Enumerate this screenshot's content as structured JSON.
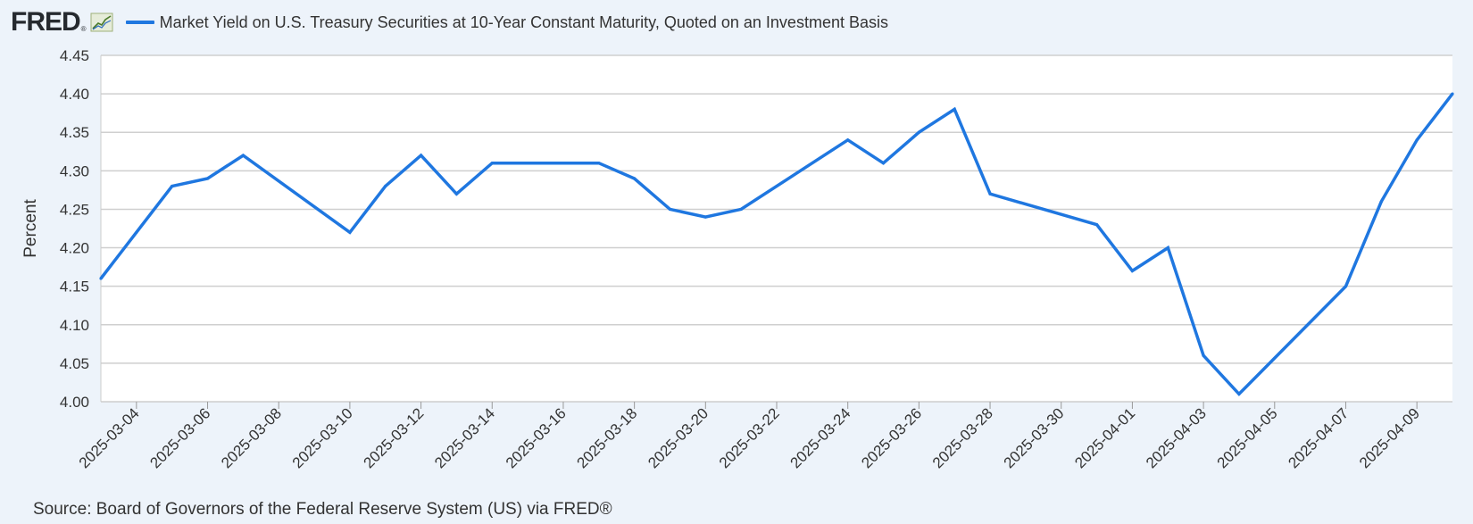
{
  "brand": {
    "logo_text": "FRED",
    "logo_mark": "®",
    "chart_icon": "line-chart-icon"
  },
  "source": "Source: Board of Governors of the Federal Reserve System (US) via FRED®",
  "colors": {
    "series": "#1f77e0",
    "background": "#edf3fa",
    "plot_bg": "#ffffff",
    "grid": "#cfcfcf"
  },
  "chart_data": {
    "type": "line",
    "title": "",
    "xlabel": "",
    "ylabel": "Percent",
    "ylim": [
      4.0,
      4.45
    ],
    "yticks": [
      "4.00",
      "4.05",
      "4.10",
      "4.15",
      "4.20",
      "4.25",
      "4.30",
      "4.35",
      "4.40",
      "4.45"
    ],
    "xlim": [
      "2025-03-03",
      "2025-04-10"
    ],
    "xticks": [
      "2025-03-04",
      "2025-03-06",
      "2025-03-08",
      "2025-03-10",
      "2025-03-12",
      "2025-03-14",
      "2025-03-16",
      "2025-03-18",
      "2025-03-20",
      "2025-03-22",
      "2025-03-24",
      "2025-03-26",
      "2025-03-28",
      "2025-03-30",
      "2025-04-01",
      "2025-04-03",
      "2025-04-05",
      "2025-04-07",
      "2025-04-09"
    ],
    "grid": true,
    "legend": "top-left",
    "series": [
      {
        "name": "Market Yield on U.S. Treasury Securities at 10-Year Constant Maturity, Quoted on an Investment Basis",
        "x": [
          "2025-03-03",
          "2025-03-04",
          "2025-03-05",
          "2025-03-06",
          "2025-03-07",
          "2025-03-10",
          "2025-03-11",
          "2025-03-12",
          "2025-03-13",
          "2025-03-14",
          "2025-03-17",
          "2025-03-18",
          "2025-03-19",
          "2025-03-20",
          "2025-03-21",
          "2025-03-24",
          "2025-03-25",
          "2025-03-26",
          "2025-03-27",
          "2025-03-28",
          "2025-03-31",
          "2025-04-01",
          "2025-04-02",
          "2025-04-03",
          "2025-04-04",
          "2025-04-07",
          "2025-04-08",
          "2025-04-09",
          "2025-04-10"
        ],
        "values": [
          4.16,
          4.22,
          4.28,
          4.29,
          4.32,
          4.22,
          4.28,
          4.32,
          4.27,
          4.31,
          4.31,
          4.29,
          4.25,
          4.24,
          4.25,
          4.34,
          4.31,
          4.35,
          4.38,
          4.27,
          4.23,
          4.17,
          4.2,
          4.06,
          4.01,
          4.15,
          4.26,
          4.34,
          4.4
        ]
      }
    ]
  }
}
